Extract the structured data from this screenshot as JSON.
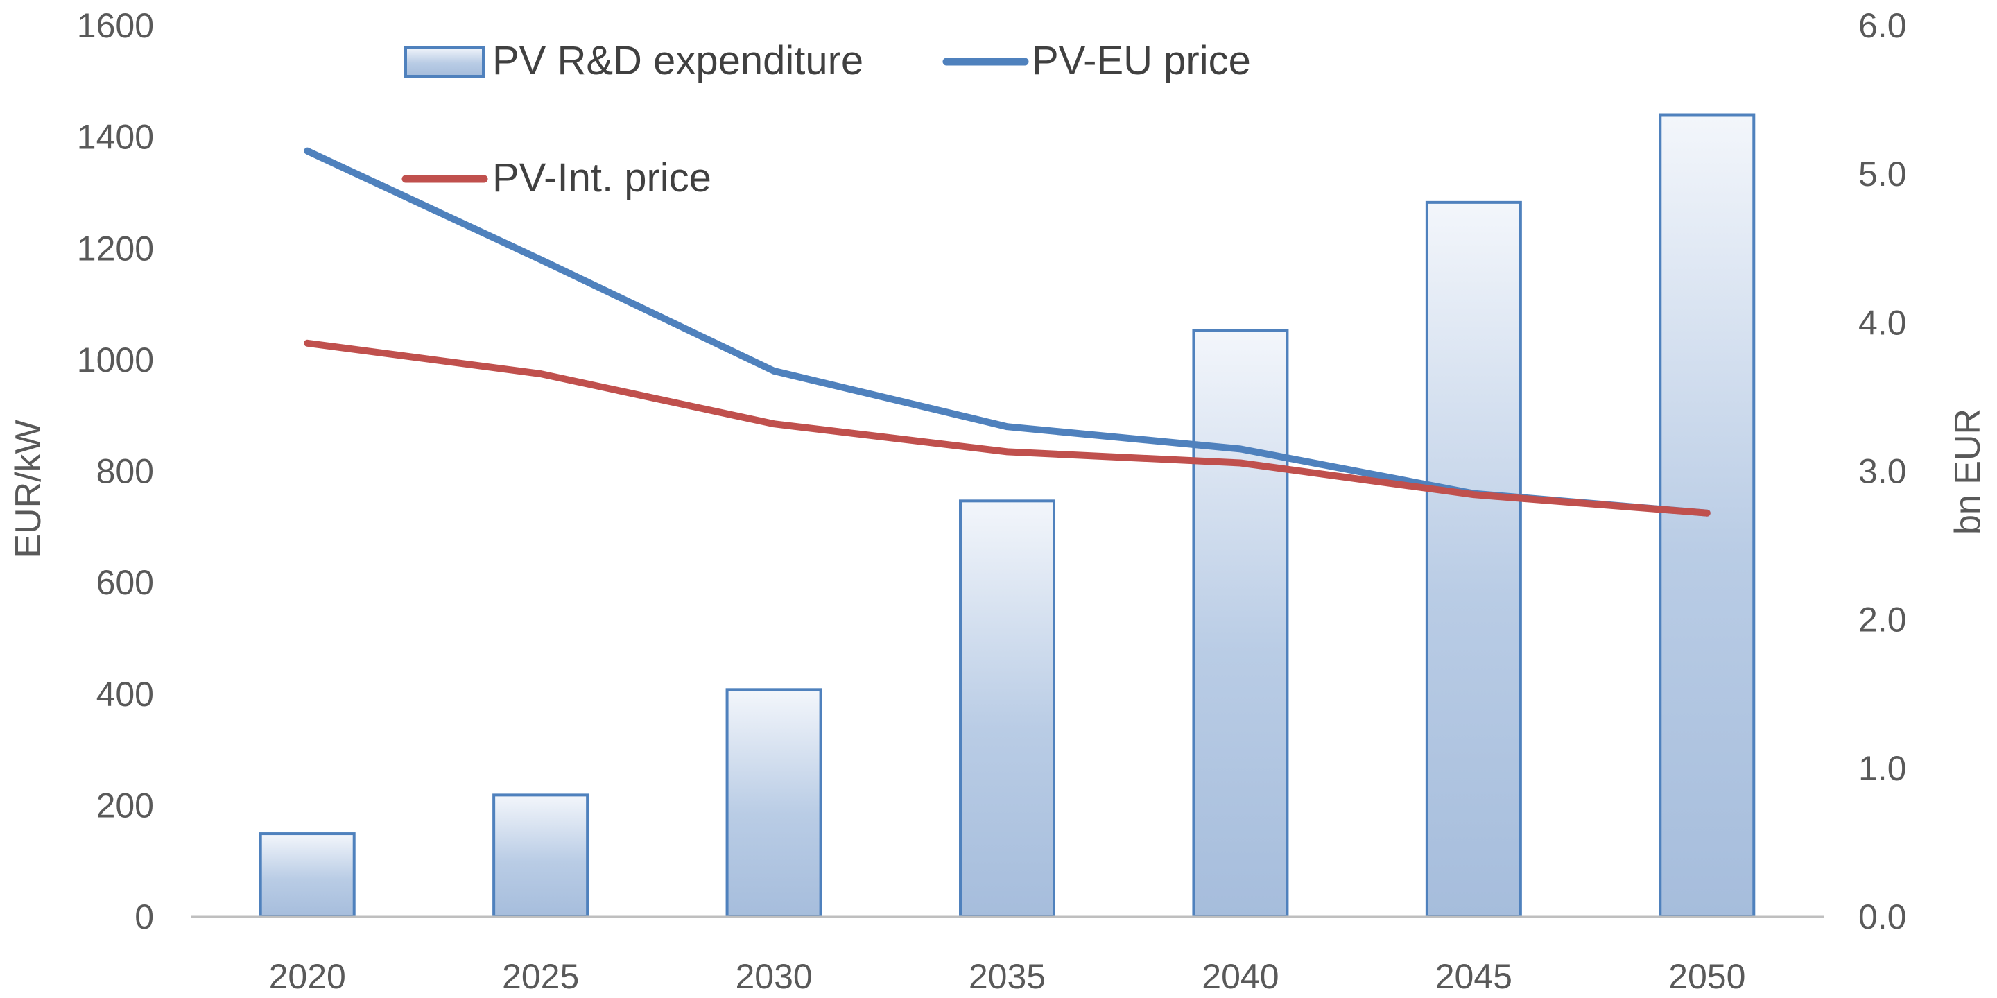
{
  "chart_data": {
    "type": "bar-line",
    "categories": [
      "2020",
      "2025",
      "2030",
      "2035",
      "2040",
      "2045",
      "2050"
    ],
    "bar_series": {
      "name": "PV R&D expenditure",
      "axis": "right",
      "values": [
        0.56,
        0.82,
        1.53,
        2.8,
        3.95,
        4.81,
        5.4
      ],
      "color": "#4f81bd"
    },
    "line_series": [
      {
        "name": "PV-EU price",
        "axis": "left",
        "values": [
          1375,
          1180,
          980,
          880,
          840,
          760,
          725
        ],
        "color": "#4f81bd"
      },
      {
        "name": "PV-Int. price",
        "axis": "left",
        "values": [
          1030,
          975,
          885,
          835,
          815,
          758,
          725
        ],
        "color": "#c0504d"
      }
    ],
    "left_axis": {
      "label": "EUR/kW",
      "min": 0,
      "max": 1600,
      "ticks": [
        "0",
        "200",
        "400",
        "600",
        "800",
        "1000",
        "1200",
        "1400",
        "1600"
      ]
    },
    "right_axis": {
      "label": "bn EUR",
      "min": 0,
      "max": 6,
      "ticks": [
        "0.0",
        "1.0",
        "2.0",
        "3.0",
        "4.0",
        "5.0",
        "6.0"
      ]
    },
    "legend": {
      "placement": "top-left",
      "entries": [
        "PV R&D expenditure",
        "PV-EU price",
        "PV-Int. price"
      ]
    },
    "grid": false
  }
}
